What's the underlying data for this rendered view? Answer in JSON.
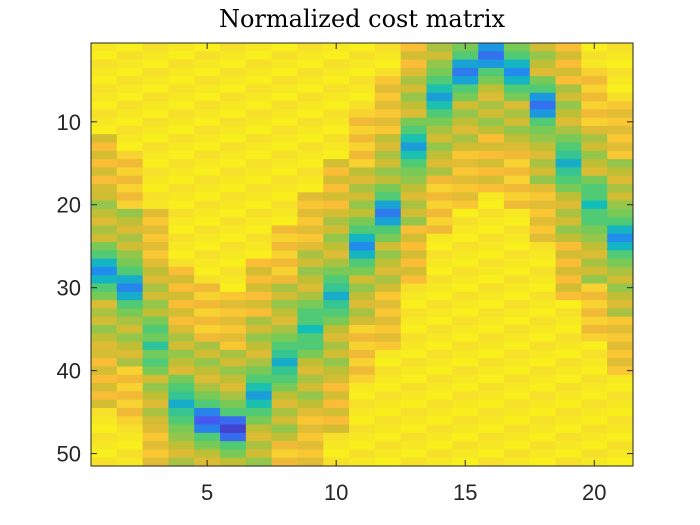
{
  "chart_data": {
    "type": "heatmap",
    "title": "Normalized cost matrix",
    "xlabel": "",
    "ylabel": "",
    "x_range": [
      0.5,
      21.5
    ],
    "y_range": [
      0.5,
      51.5
    ],
    "y_reversed": true,
    "n_cols": 21,
    "n_rows": 51,
    "x_ticks": [
      5,
      10,
      15,
      20
    ],
    "y_ticks": [
      10,
      20,
      30,
      40,
      50
    ],
    "colormap": "parula",
    "value_range": [
      0,
      1
    ],
    "grid": false,
    "legend": "none",
    "path_row_per_col": [
      28,
      30,
      37,
      44,
      46,
      47,
      43,
      39,
      35,
      31,
      25,
      21,
      13,
      7,
      4,
      2,
      4,
      8,
      15,
      20,
      24
    ],
    "path_depth": [
      0.3,
      0.28,
      0.5,
      0.4,
      0.15,
      0.08,
      0.35,
      0.4,
      0.45,
      0.4,
      0.3,
      0.25,
      0.35,
      0.35,
      0.25,
      0.22,
      0.3,
      0.22,
      0.4,
      0.45,
      0.3
    ],
    "values": []
  }
}
